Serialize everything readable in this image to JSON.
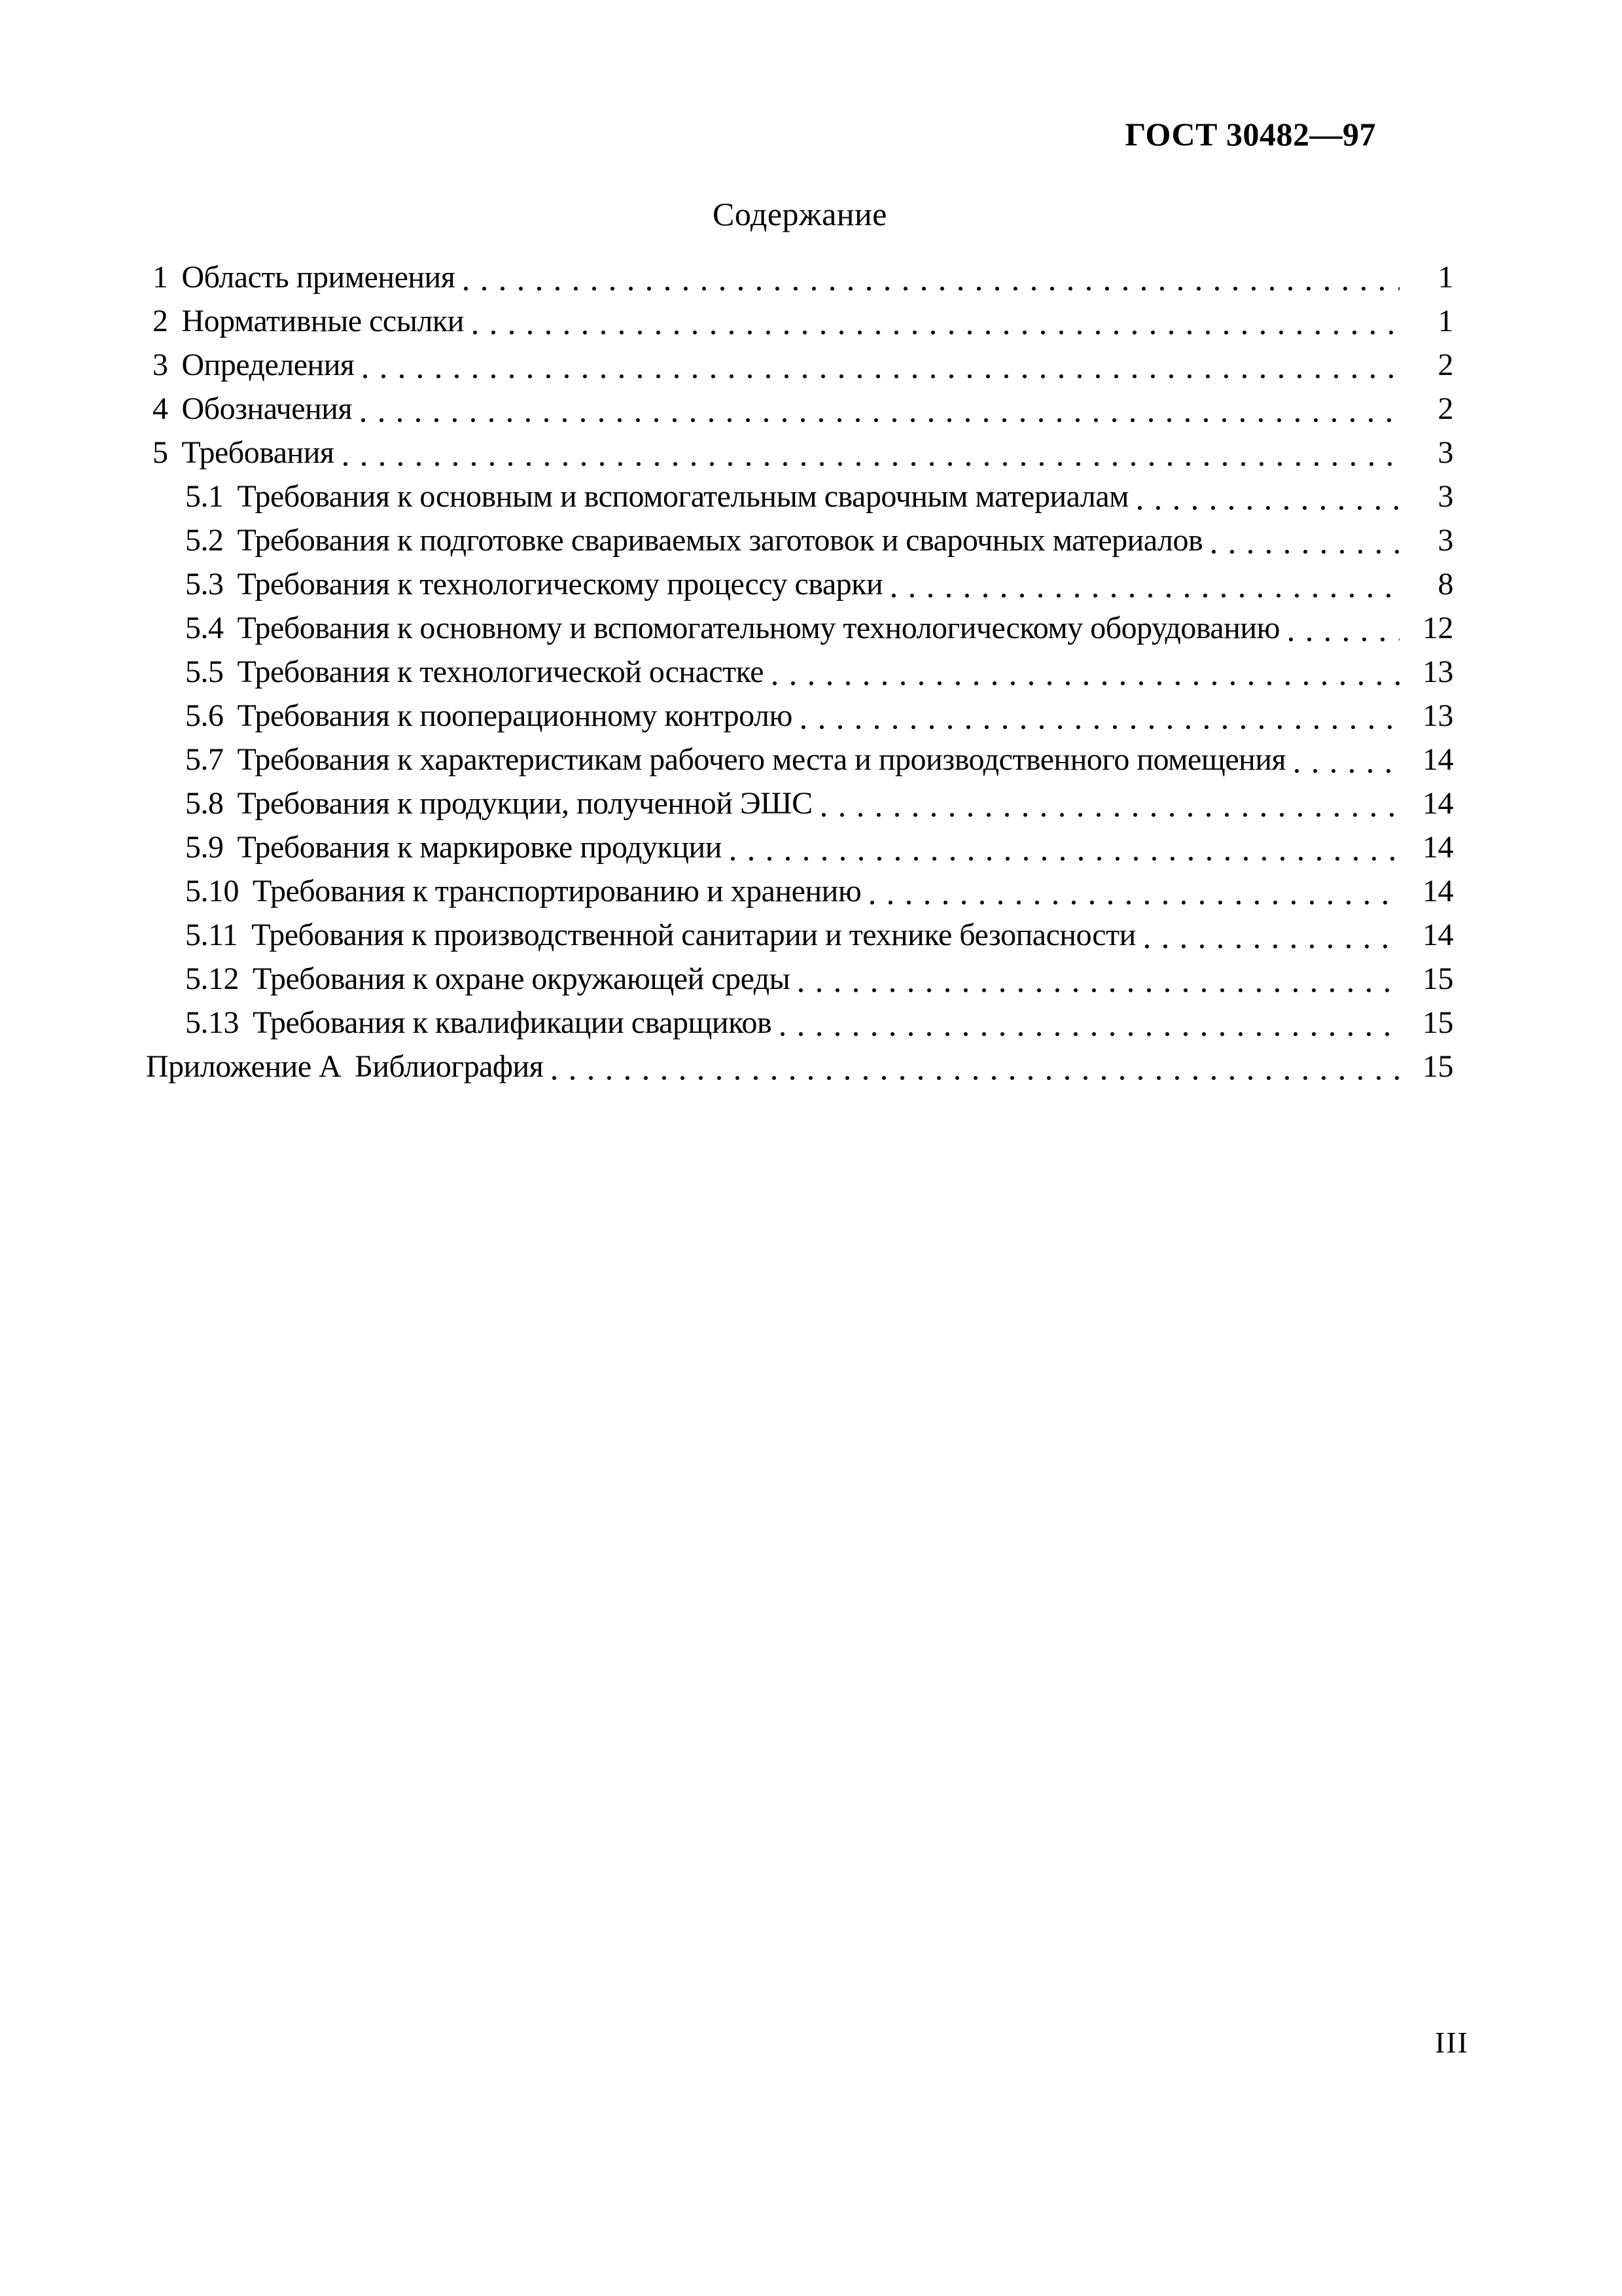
{
  "header": {
    "doc_code": "ГОСТ 30482—97"
  },
  "title": "Содержание",
  "toc": {
    "entries": [
      {
        "num": "1",
        "label": "Область применения",
        "page": "1",
        "level": 0
      },
      {
        "num": "2",
        "label": "Нормативные ссылки",
        "page": "1",
        "level": 0
      },
      {
        "num": "3",
        "label": "Определения",
        "page": "2",
        "level": 0
      },
      {
        "num": "4",
        "label": "Обозначения",
        "page": "2",
        "level": 0
      },
      {
        "num": "5",
        "label": "Требования",
        "page": "3",
        "level": 0
      },
      {
        "num": "5.1",
        "label": "Требования к основным и вспомогательным сварочным материалам",
        "page": "3",
        "level": 1
      },
      {
        "num": "5.2",
        "label": "Требования к подготовке свариваемых заготовок и сварочных материалов",
        "page": "3",
        "level": 1
      },
      {
        "num": "5.3",
        "label": "Требования к технологическому процессу сварки",
        "page": "8",
        "level": 1
      },
      {
        "num": "5.4",
        "label": "Требования к основному и вспомогательному технологическому оборудованию",
        "page": "12",
        "level": 1
      },
      {
        "num": "5.5",
        "label": "Требования к технологической оснастке",
        "page": "13",
        "level": 1
      },
      {
        "num": "5.6",
        "label": "Требования к пооперационному контролю",
        "page": "13",
        "level": 1
      },
      {
        "num": "5.7",
        "label": "Требования к характеристикам рабочего места и производственного помещения",
        "page": "14",
        "level": 1
      },
      {
        "num": "5.8",
        "label": "Требования к продукции, полученной ЭШС",
        "page": "14",
        "level": 1
      },
      {
        "num": "5.9",
        "label": "Требования к маркировке продукции",
        "page": "14",
        "level": 1
      },
      {
        "num": "5.10",
        "label": "Требования к транспортированию и хранению",
        "page": "14",
        "level": 1
      },
      {
        "num": "5.11",
        "label": "Требования к производственной санитарии и технике безопасности",
        "page": "14",
        "level": 1
      },
      {
        "num": "5.12",
        "label": "Требования к охране окружающей среды",
        "page": "15",
        "level": 1
      },
      {
        "num": "5.13",
        "label": "Требования к квалификации сварщиков",
        "page": "15",
        "level": 1
      },
      {
        "num": "Приложение А",
        "label": "Библиография",
        "page": "15",
        "level": 2
      }
    ]
  },
  "footer": {
    "page_number": "III"
  }
}
